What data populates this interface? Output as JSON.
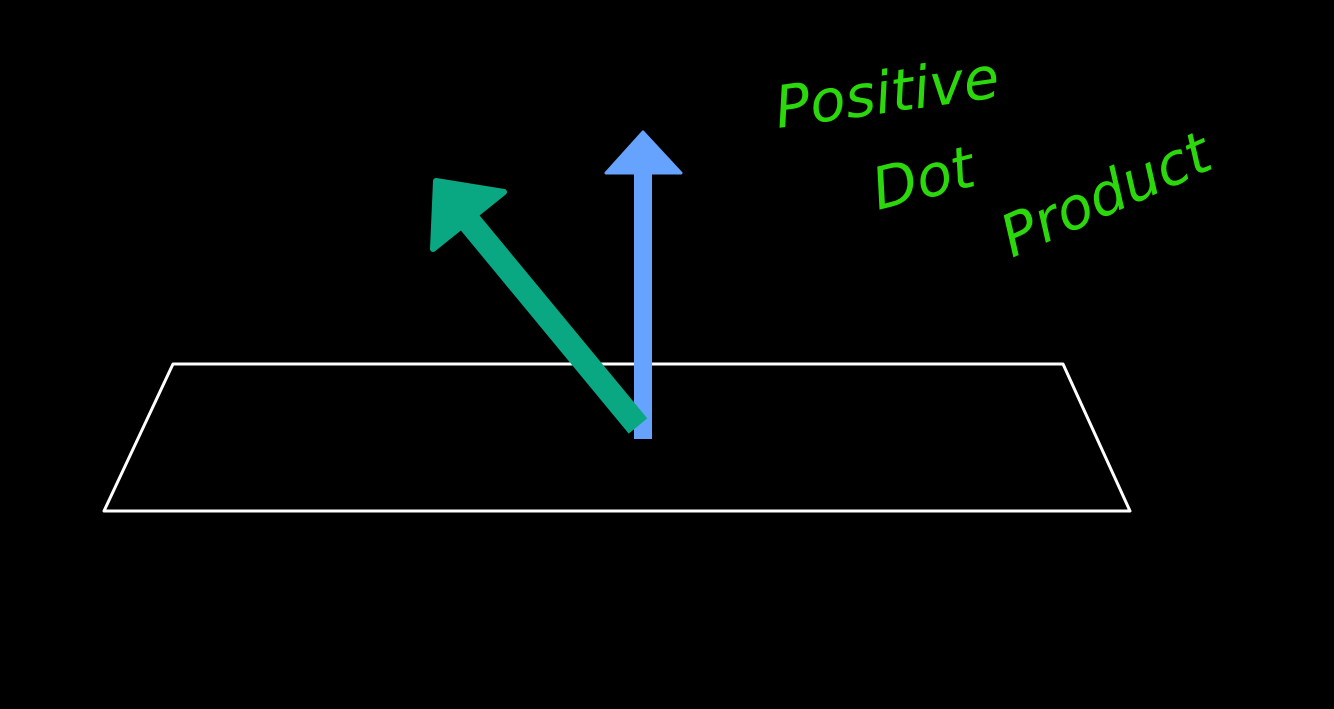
{
  "annotation": {
    "lines": [
      "Positive",
      "Dot",
      "Product"
    ]
  }
}
